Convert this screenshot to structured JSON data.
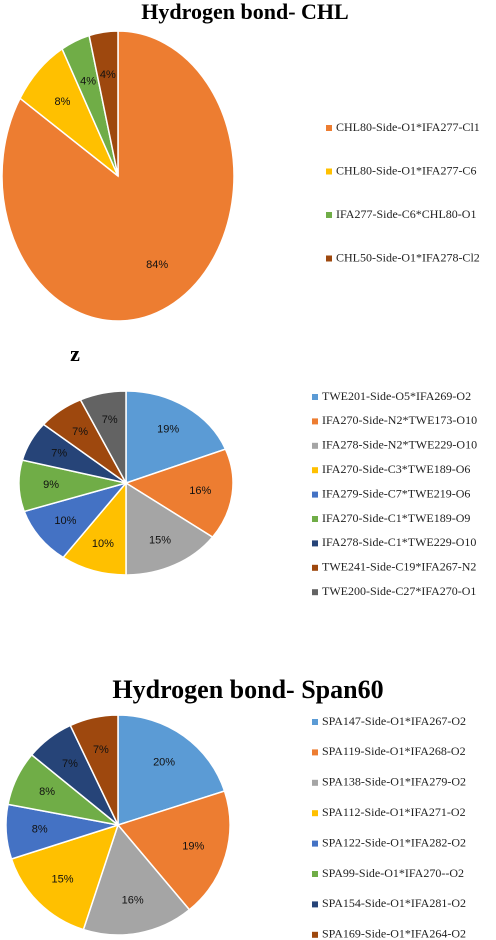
{
  "chart_data": [
    {
      "type": "pie",
      "title": "Hydrogen bond- CHL",
      "categories": [
        "CHL80-Side-O1*IFA277-Cl1",
        "CHL80-Side-O1*IFA277-C6",
        "IFA277-Side-C6*CHL80-O1",
        "CHL50-Side-O1*IFA278-Cl2"
      ],
      "values": [
        84,
        8,
        4,
        4
      ],
      "value_labels": [
        "84%",
        "8%",
        "4%",
        "4%"
      ],
      "colors": [
        "#ed7d31",
        "#ffc000",
        "#70ad47",
        "#9e480e"
      ]
    },
    {
      "type": "pie",
      "title": "z",
      "categories": [
        "TWE201-Side-O5*IFA269-O2",
        "IFA270-Side-N2*TWE173-O10",
        "IFA278-Side-N2*TWE229-O10",
        "IFA270-Side-C3*TWE189-O6",
        "IFA279-Side-C7*TWE219-O6",
        "IFA270-Side-C1*TWE189-O9",
        "IFA278-Side-C1*TWE229-O10",
        "TWE241-Side-C19*IFA267-N2",
        "TWE200-Side-C27*IFA270-O1"
      ],
      "values": [
        19,
        16,
        15,
        10,
        10,
        9,
        7,
        7,
        7
      ],
      "value_labels": [
        "19%",
        "16%",
        "15%",
        "10%",
        "10%",
        "9%",
        "7%",
        "7%",
        "7%"
      ],
      "colors": [
        "#5b9bd5",
        "#ed7d31",
        "#a5a5a5",
        "#ffc000",
        "#4472c4",
        "#70ad47",
        "#264478",
        "#9e480e",
        "#636363"
      ]
    },
    {
      "type": "pie",
      "title": "Hydrogen bond- Span60",
      "categories": [
        "SPA147-Side-O1*IFA267-O2",
        "SPA119-Side-O1*IFA268-O2",
        "SPA138-Side-O1*IFA279-O2",
        "SPA112-Side-O1*IFA271-O2",
        "SPA122-Side-O1*IFA282-O2",
        "SPA99-Side-O1*IFA270--O2",
        "SPA154-Side-O1*IFA281-O2",
        "SPA169-Side-O1*IFA264-O2"
      ],
      "values": [
        20,
        19,
        16,
        15,
        8,
        8,
        7,
        7
      ],
      "value_labels": [
        "20%",
        "19%",
        "16%",
        "15%",
        "8%",
        "8%",
        "7%",
        "7%"
      ],
      "colors": [
        "#5b9bd5",
        "#ed7d31",
        "#a5a5a5",
        "#ffc000",
        "#4472c4",
        "#70ad47",
        "#264478",
        "#9e480e"
      ]
    }
  ]
}
